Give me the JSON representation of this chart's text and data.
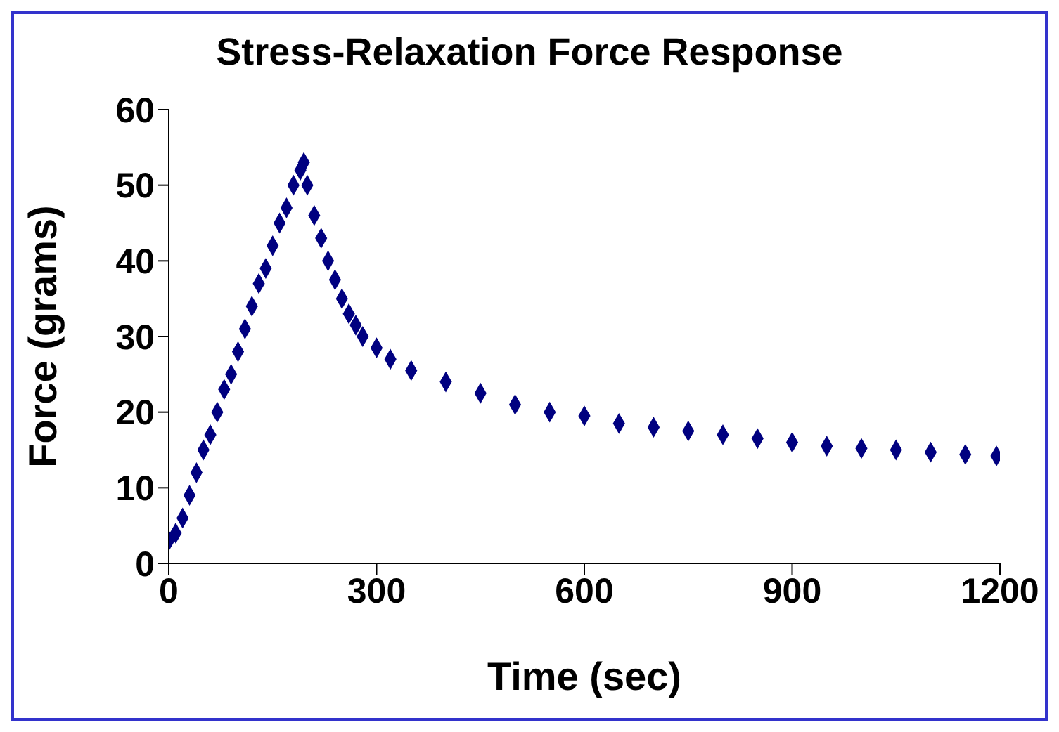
{
  "chart_data": {
    "type": "scatter",
    "title": "Stress-Relaxation Force Response",
    "xlabel": "Time (sec)",
    "ylabel": "Force (grams)",
    "xlim": [
      0,
      1200
    ],
    "xticks": [
      0,
      300,
      600,
      900,
      1200
    ],
    "ylim": [
      0,
      60
    ],
    "yticks": [
      0,
      10,
      20,
      30,
      40,
      50,
      60
    ],
    "grid": false,
    "marker": "diamond",
    "series": [
      {
        "color": "#000080",
        "x": [
          0,
          10,
          20,
          30,
          40,
          50,
          60,
          70,
          80,
          90,
          100,
          110,
          120,
          130,
          140,
          150,
          160,
          170,
          180,
          190,
          195,
          200,
          210,
          220,
          230,
          240,
          250,
          260,
          270,
          280,
          300,
          320,
          350,
          400,
          450,
          500,
          550,
          600,
          650,
          700,
          750,
          800,
          850,
          900,
          950,
          1000,
          1050,
          1100,
          1150,
          1195
        ],
        "values": [
          3,
          4,
          6,
          9,
          12,
          15,
          17,
          20,
          23,
          25,
          28,
          31,
          34,
          37,
          39,
          42,
          45,
          47,
          50,
          52,
          53,
          50,
          46,
          43,
          40,
          37.5,
          35,
          33,
          31.5,
          30,
          28.5,
          27,
          25.5,
          24,
          22.5,
          21,
          20,
          19.5,
          18.5,
          18,
          17.5,
          17,
          16.5,
          16,
          15.5,
          15.2,
          15,
          14.7,
          14.4,
          14.2
        ]
      }
    ]
  }
}
